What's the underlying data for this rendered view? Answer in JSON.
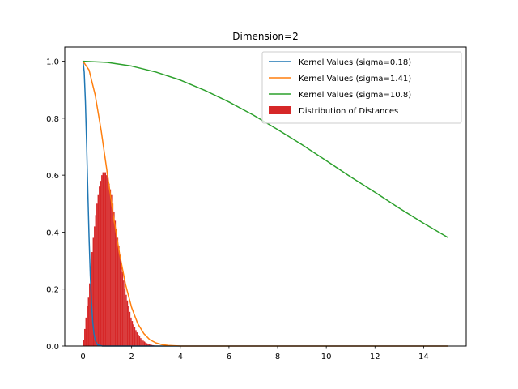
{
  "chart_data": {
    "type": "line",
    "title": "Dimension=2",
    "xlabel": "",
    "ylabel": "",
    "xlim": [
      -0.75,
      15.75
    ],
    "ylim": [
      0.0,
      1.05
    ],
    "xticks": [
      0,
      2,
      4,
      6,
      8,
      10,
      12,
      14
    ],
    "yticks": [
      0.0,
      0.2,
      0.4,
      0.6,
      0.8,
      1.0
    ],
    "xtick_labels": [
      "0",
      "2",
      "4",
      "6",
      "8",
      "10",
      "12",
      "14"
    ],
    "ytick_labels": [
      "0.0",
      "0.2",
      "0.4",
      "0.6",
      "0.8",
      "1.0"
    ],
    "grid": false,
    "legend_position": "top-right",
    "series": [
      {
        "name": "Kernel Values (sigma=0.18)",
        "kind": "line",
        "color": "#1f77b4",
        "x": [
          0,
          0.05,
          0.1,
          0.15,
          0.2,
          0.25,
          0.3,
          0.35,
          0.4,
          0.45,
          0.5,
          0.6,
          0.8,
          1.0,
          15
        ],
        "y": [
          1.0,
          0.962,
          0.857,
          0.707,
          0.54,
          0.381,
          0.249,
          0.151,
          0.085,
          0.044,
          0.021,
          0.004,
          0.0,
          0.0,
          0.0
        ]
      },
      {
        "name": "Kernel Values (sigma=1.41)",
        "kind": "line",
        "color": "#ff7f0e",
        "x": [
          0,
          0.25,
          0.5,
          0.75,
          1.0,
          1.25,
          1.5,
          1.75,
          2.0,
          2.25,
          2.5,
          2.75,
          3.0,
          3.25,
          3.5,
          4.0,
          4.5,
          5.0,
          15
        ],
        "y": [
          1.0,
          0.969,
          0.882,
          0.755,
          0.606,
          0.458,
          0.325,
          0.216,
          0.135,
          0.079,
          0.044,
          0.022,
          0.011,
          0.005,
          0.002,
          0.0,
          0.0,
          0.0,
          0.0
        ]
      },
      {
        "name": "Kernel Values (sigma=10.8)",
        "kind": "line",
        "color": "#2ca02c",
        "x": [
          0,
          1,
          2,
          3,
          4,
          5,
          6,
          7,
          8,
          9,
          10,
          11,
          12,
          13,
          14,
          15
        ],
        "y": [
          1.0,
          0.996,
          0.983,
          0.962,
          0.934,
          0.898,
          0.857,
          0.811,
          0.76,
          0.707,
          0.651,
          0.594,
          0.54,
          0.484,
          0.431,
          0.381
        ]
      },
      {
        "name": "Distribution of Distances",
        "kind": "histogram",
        "color": "#d62728",
        "bin_start": 0.0,
        "bin_width": 0.05,
        "values": [
          0.02,
          0.06,
          0.1,
          0.14,
          0.17,
          0.22,
          0.28,
          0.33,
          0.38,
          0.42,
          0.46,
          0.5,
          0.53,
          0.56,
          0.58,
          0.6,
          0.61,
          0.61,
          0.61,
          0.6,
          0.59,
          0.57,
          0.55,
          0.53,
          0.5,
          0.47,
          0.44,
          0.41,
          0.38,
          0.35,
          0.32,
          0.29,
          0.26,
          0.23,
          0.2,
          0.18,
          0.16,
          0.14,
          0.12,
          0.1,
          0.088,
          0.076,
          0.066,
          0.056,
          0.048,
          0.04,
          0.034,
          0.028,
          0.023,
          0.019,
          0.016,
          0.013,
          0.01,
          0.008,
          0.006,
          0.005,
          0.004,
          0.003,
          0.002,
          0.001,
          0.001,
          0.001,
          0.001,
          0.0,
          0.0,
          0.0,
          0.0,
          0.0,
          0.0,
          0.0,
          0.0,
          0.0,
          0.0,
          0.0,
          0.0,
          0.0,
          0.0,
          0.0,
          0.0,
          0.0
        ]
      }
    ]
  }
}
